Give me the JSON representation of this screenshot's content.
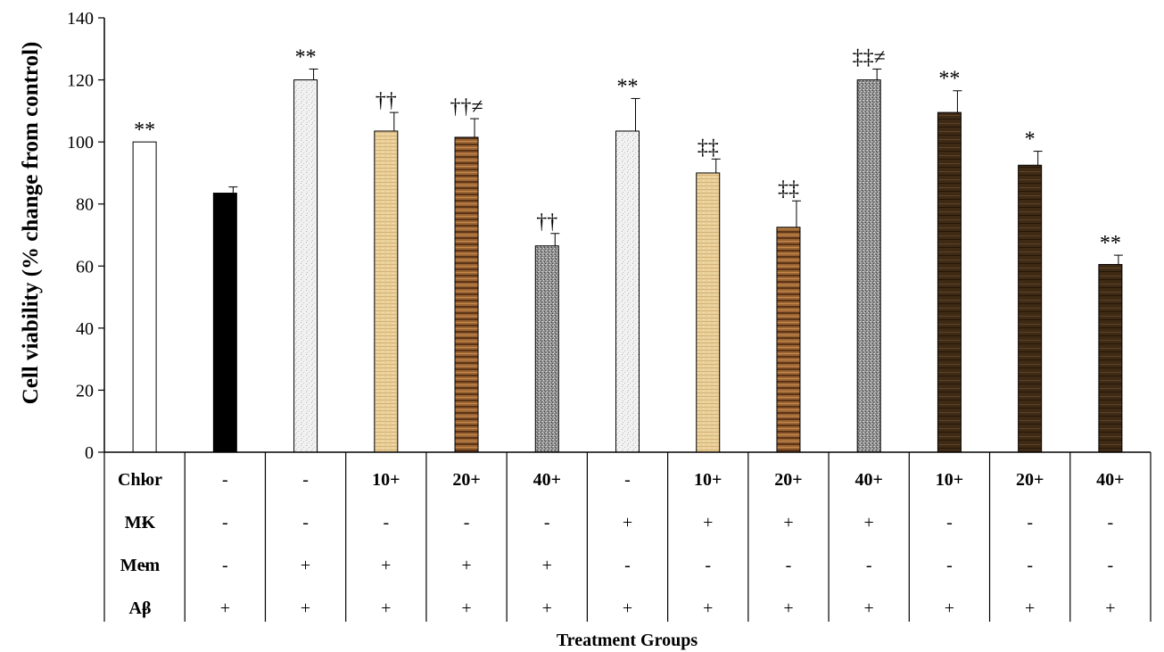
{
  "chart_data": {
    "type": "bar",
    "xlabel": "Treatment Groups",
    "ylabel": "Cell viability (% change from control)",
    "ylim": [
      0,
      140
    ],
    "yticks": [
      0,
      20,
      40,
      60,
      80,
      100,
      120,
      140
    ],
    "grid": false,
    "legend": "none",
    "bars": [
      {
        "value": 100,
        "error": 0,
        "sig": "**",
        "fill": "white"
      },
      {
        "value": 83.5,
        "error": 2,
        "sig": "",
        "fill": "black"
      },
      {
        "value": 120,
        "error": 3.5,
        "sig": "**",
        "fill": "speckle-light"
      },
      {
        "value": 103.5,
        "error": 6,
        "sig": "††",
        "fill": "tan-lines"
      },
      {
        "value": 101.5,
        "error": 6,
        "sig": "††≠",
        "fill": "brown-stripes"
      },
      {
        "value": 66.5,
        "error": 4,
        "sig": "††",
        "fill": "speckle-dark"
      },
      {
        "value": 103.5,
        "error": 10.5,
        "sig": "**",
        "fill": "speckle-light"
      },
      {
        "value": 90,
        "error": 4.5,
        "sig": "‡‡",
        "fill": "tan-lines"
      },
      {
        "value": 72.5,
        "error": 8.5,
        "sig": "‡‡",
        "fill": "brown-stripes"
      },
      {
        "value": 120,
        "error": 3.5,
        "sig": "‡‡≠",
        "fill": "speckle-dark"
      },
      {
        "value": 109.5,
        "error": 7,
        "sig": "**",
        "fill": "dark-wood"
      },
      {
        "value": 92.5,
        "error": 4.5,
        "sig": "*",
        "fill": "dark-wood"
      },
      {
        "value": 60.5,
        "error": 3,
        "sig": "**",
        "fill": "dark-wood"
      }
    ],
    "table": {
      "rows": [
        {
          "label": "Chlor",
          "bold_cells": true,
          "cells": [
            "-",
            "-",
            "-",
            "10+",
            "20+",
            "40+",
            "-",
            "10+",
            "20+",
            "40+",
            "10+",
            "20+",
            "40+"
          ]
        },
        {
          "label": "MK",
          "bold_cells": false,
          "cells": [
            "-",
            "-",
            "-",
            "-",
            "-",
            "-",
            "+",
            "+",
            "+",
            "+",
            "-",
            "-",
            "-"
          ]
        },
        {
          "label": "Mem",
          "bold_cells": false,
          "cells": [
            "-",
            "-",
            "+",
            "+",
            "+",
            "+",
            "-",
            "-",
            "-",
            "-",
            "-",
            "-",
            "-"
          ]
        },
        {
          "label": "Aβ",
          "bold_cells": false,
          "cells": [
            "-",
            "+",
            "+",
            "+",
            "+",
            "+",
            "+",
            "+",
            "+",
            "+",
            "+",
            "+",
            "+"
          ]
        }
      ]
    }
  }
}
